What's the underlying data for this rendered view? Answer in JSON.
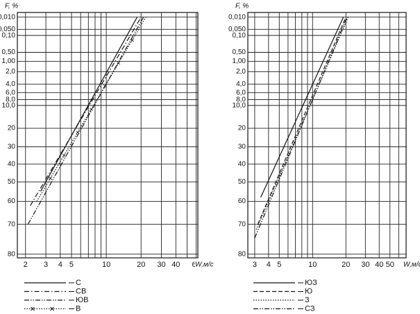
{
  "chart_data": [
    {
      "type": "line",
      "ylabel": "F, %",
      "xlabel": "W,м/с",
      "xscale": "log",
      "yscale": "loglog",
      "grid": true,
      "xlim": [
        1.7,
        62
      ],
      "xticks": [
        2,
        3,
        4,
        5,
        10,
        20,
        30,
        40,
        60
      ],
      "xminor": [
        6,
        7,
        8,
        9,
        50
      ],
      "ylim": [
        0.005,
        81
      ],
      "yticks": [
        {
          "value": 0.01,
          "label": "0,010"
        },
        {
          "value": 0.05,
          "label": "0,050"
        },
        {
          "value": 0.1,
          "label": "0,10"
        },
        {
          "value": 0.5,
          "label": "0,50"
        },
        {
          "value": 1,
          "label": "1,00"
        },
        {
          "value": 2,
          "label": "2,0"
        },
        {
          "value": 4,
          "label": "4,0"
        },
        {
          "value": 6,
          "label": "6,0"
        },
        {
          "value": 8,
          "label": "8,0"
        },
        {
          "value": 10,
          "label": "10,0"
        },
        20,
        30,
        40,
        50,
        60,
        70,
        80
      ],
      "series": [
        {
          "name": "С",
          "style": "solid",
          "color": "#111111",
          "x": [
            2.7,
            18.5
          ],
          "values": [
            55,
            0.01
          ]
        },
        {
          "name": "СВ",
          "style": "dashdot",
          "color": "#111111",
          "x": [
            2.2,
            20
          ],
          "values": [
            62,
            0.01
          ]
        },
        {
          "name": "ЮВ",
          "style": "dashdotdot",
          "color": "#111111",
          "x": [
            2.1,
            21
          ],
          "values": [
            70,
            0.01
          ]
        },
        {
          "name": "В",
          "style": "cross",
          "color": "#111111",
          "x": [
            2.5,
            22
          ],
          "values": [
            60,
            0.01
          ]
        }
      ]
    },
    {
      "type": "line",
      "ylabel": "F, %",
      "xlabel": "W,м/с",
      "xscale": "log",
      "yscale": "loglog",
      "grid": true,
      "xlim": [
        2.6,
        70
      ],
      "xticks": [
        3,
        4,
        5,
        10,
        20,
        30,
        40,
        50
      ],
      "xminor": [
        6,
        7,
        8,
        9,
        60
      ],
      "ylim": [
        0.005,
        81
      ],
      "yticks": [
        {
          "value": 0.01,
          "label": "0,010"
        },
        {
          "value": 0.05,
          "label": "0,050"
        },
        {
          "value": 0.1,
          "label": "0,10"
        },
        {
          "value": 0.5,
          "label": "0,50"
        },
        {
          "value": 1,
          "label": "1,00"
        },
        {
          "value": 2,
          "label": "2,0"
        },
        {
          "value": 4,
          "label": "4,0"
        },
        {
          "value": 6,
          "label": "6,0"
        },
        {
          "value": 8,
          "label": "8,0"
        },
        {
          "value": 10,
          "label": "10,0"
        },
        20,
        30,
        40,
        50,
        60,
        70,
        80
      ],
      "series": [
        {
          "name": "ЮЗ",
          "style": "solid",
          "color": "#111111",
          "x": [
            3.4,
            19
          ],
          "values": [
            58,
            0.01
          ]
        },
        {
          "name": "Ю",
          "style": "dash",
          "color": "#111111",
          "x": [
            3.2,
            20
          ],
          "values": [
            70,
            0.01
          ]
        },
        {
          "name": "З",
          "style": "dotted",
          "color": "#111111",
          "x": [
            3.1,
            21
          ],
          "values": [
            72,
            0.01
          ]
        },
        {
          "name": "СЗ",
          "style": "dashdotdot",
          "color": "#111111",
          "x": [
            3.0,
            20.5
          ],
          "values": [
            75,
            0.01
          ]
        }
      ]
    }
  ]
}
